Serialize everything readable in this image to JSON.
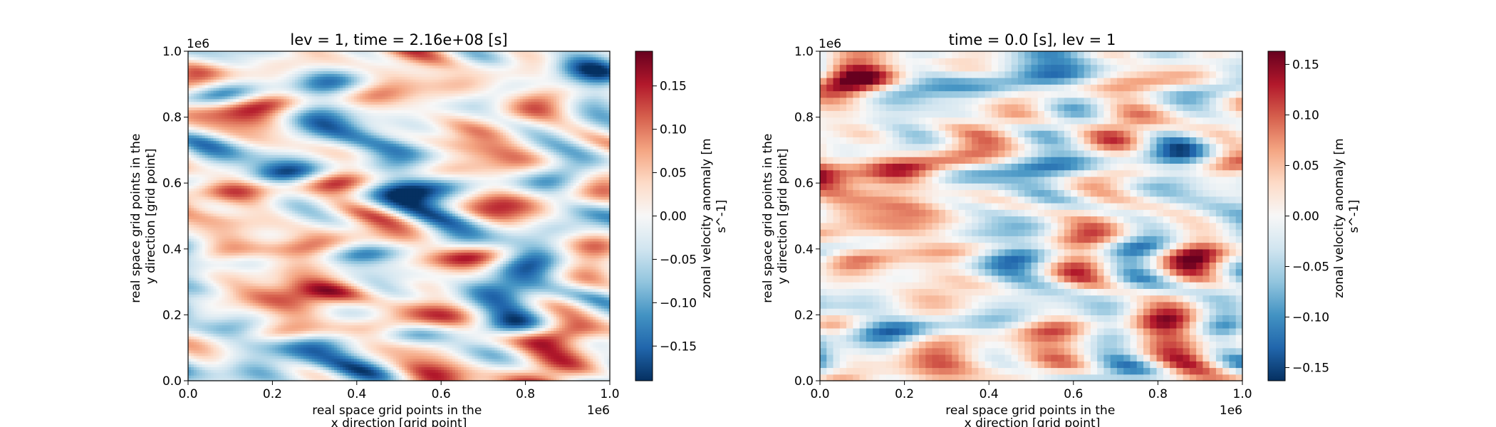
{
  "figure": {
    "background": "#ffffff"
  },
  "colormap": {
    "name": "RdBu_r",
    "stops": [
      "#053061",
      "#2166ac",
      "#4393c3",
      "#92c5de",
      "#d1e5f0",
      "#f7f7f7",
      "#fddbc7",
      "#f4a582",
      "#d6604d",
      "#b2182b",
      "#67001f"
    ]
  },
  "chart_data": [
    {
      "type": "heatmap",
      "title": "lev = 1, time = 2.16e+08 [s]",
      "xlabel": [
        "real space grid points in the",
        "x direction [grid point]"
      ],
      "ylabel": [
        "real space grid points in the",
        "y direction [grid point]"
      ],
      "xlim": [
        0,
        1.0
      ],
      "ylim": [
        0,
        1.0
      ],
      "x_ticks": [
        "0.0",
        "0.2",
        "0.4",
        "0.6",
        "0.8",
        "1.0"
      ],
      "y_ticks": [
        "0.0",
        "0.2",
        "0.4",
        "0.6",
        "0.8",
        "1.0"
      ],
      "x_offset": "1e6",
      "y_offset": "1e6",
      "field_resolution": "fine",
      "colorbar": {
        "label": [
          "zonal velocity anomaly [m",
          "s^-1]"
        ],
        "range": [
          -0.19,
          0.19
        ],
        "ticks": [
          "−0.15",
          "−0.10",
          "−0.05",
          "0.00",
          "0.05",
          "0.10",
          "0.15"
        ],
        "tick_values": [
          -0.15,
          -0.1,
          -0.05,
          0.0,
          0.05,
          0.1,
          0.15
        ]
      }
    },
    {
      "type": "heatmap",
      "title": "time = 0.0 [s], lev = 1",
      "xlabel": [
        "real space grid points in the",
        "x direction [grid point]"
      ],
      "ylabel": [
        "real space grid points in the",
        "y direction [grid point]"
      ],
      "xlim": [
        0,
        1.0
      ],
      "ylim": [
        0,
        1.0
      ],
      "x_ticks": [
        "0.0",
        "0.2",
        "0.4",
        "0.6",
        "0.8",
        "1.0"
      ],
      "y_ticks": [
        "0.0",
        "0.2",
        "0.4",
        "0.6",
        "0.8",
        "1.0"
      ],
      "x_offset": "1e6",
      "y_offset": "1e6",
      "field_resolution": "coarse",
      "colorbar": {
        "label": [
          "zonal velocity anomaly [m",
          "s^-1]"
        ],
        "range": [
          -0.163,
          0.163
        ],
        "ticks": [
          "−0.15",
          "−0.10",
          "−0.05",
          "0.00",
          "0.05",
          "0.10",
          "0.15"
        ],
        "tick_values": [
          -0.15,
          -0.1,
          -0.05,
          0.0,
          0.05,
          0.1,
          0.15
        ]
      }
    }
  ]
}
